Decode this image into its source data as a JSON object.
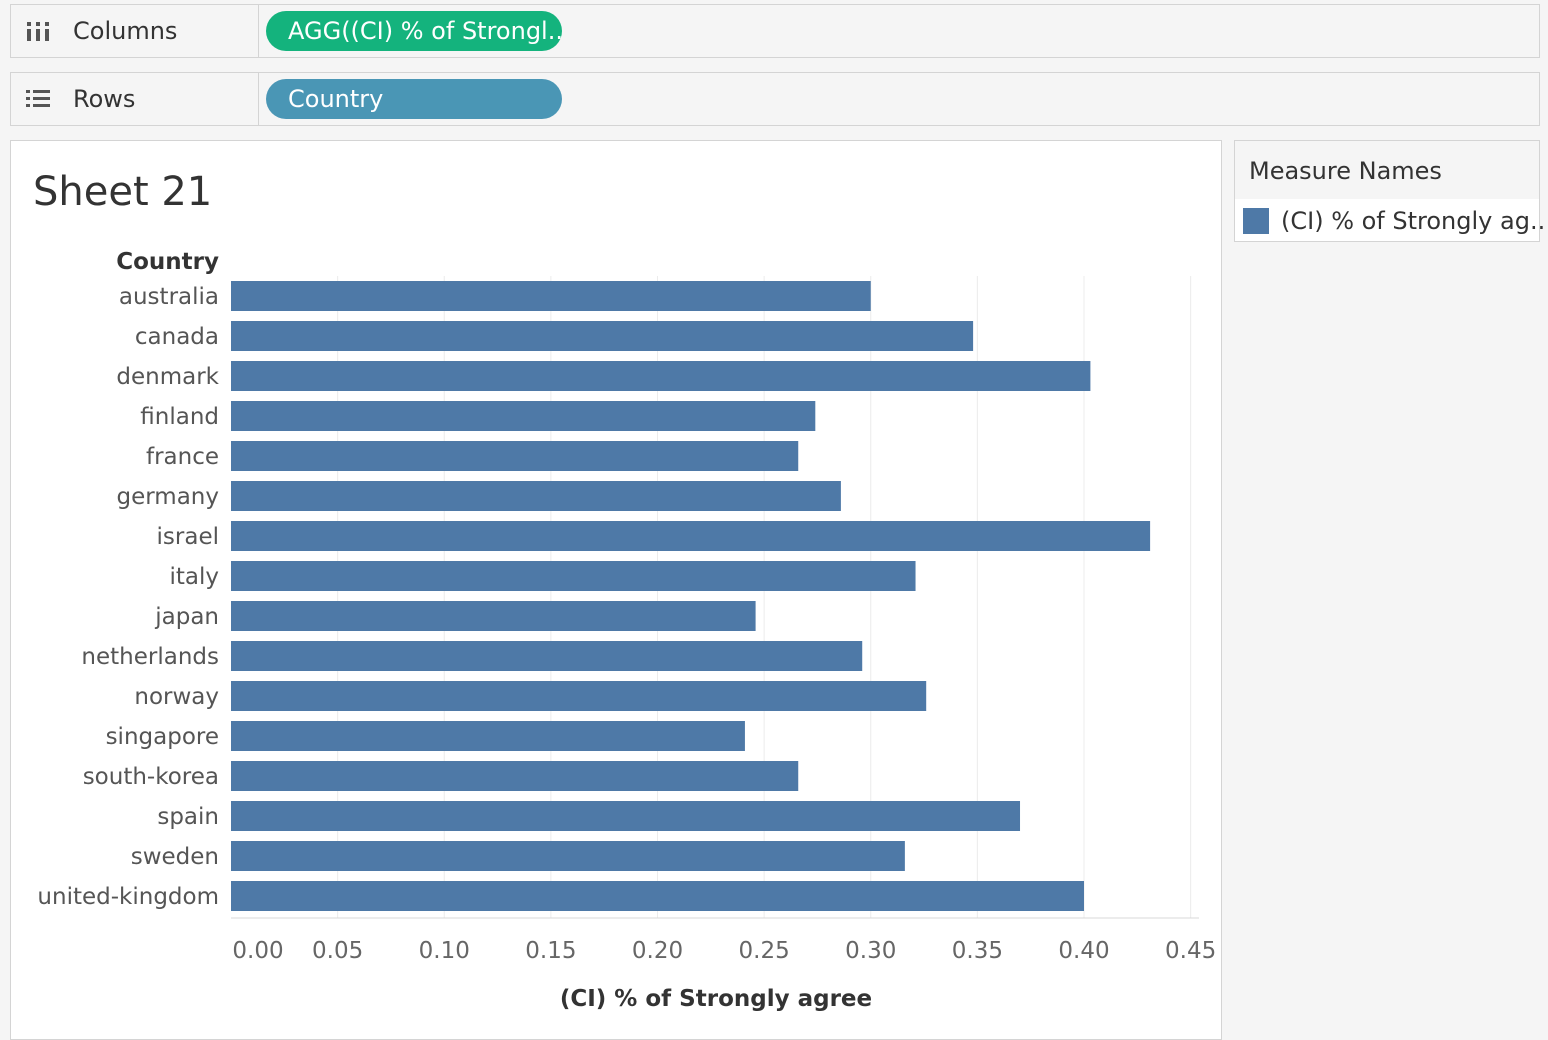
{
  "shelves": {
    "columns": {
      "label": "Columns",
      "icon": "columns-icon",
      "pill": "AGG((CI) % of Strongl.."
    },
    "rows": {
      "label": "Rows",
      "icon": "rows-icon",
      "pill": "Country"
    }
  },
  "sheet": {
    "title": "Sheet 21"
  },
  "legend": {
    "title": "Measure Names",
    "items": [
      {
        "label": "(CI) % of Strongly ag..",
        "color": "#4e79a7"
      }
    ]
  },
  "colors": {
    "bar": "#4e79a7",
    "pill_columns": "#14b37d",
    "pill_rows": "#4a96b5"
  },
  "chart_data": {
    "type": "bar",
    "orientation": "horizontal",
    "ylabel": "Country",
    "xlabel": "(CI) % of Strongly agree",
    "xlim": [
      0,
      0.45
    ],
    "xticks": [
      "0.00",
      "0.05",
      "0.10",
      "0.15",
      "0.20",
      "0.25",
      "0.30",
      "0.35",
      "0.40",
      "0.45"
    ],
    "grid": true,
    "categories": [
      "australia",
      "canada",
      "denmark",
      "finland",
      "france",
      "germany",
      "israel",
      "italy",
      "japan",
      "netherlands",
      "norway",
      "singapore",
      "south-korea",
      "spain",
      "sweden",
      "united-kingdom"
    ],
    "values": [
      0.3,
      0.348,
      0.403,
      0.274,
      0.266,
      0.286,
      0.431,
      0.321,
      0.246,
      0.296,
      0.326,
      0.241,
      0.266,
      0.37,
      0.316,
      0.4
    ]
  }
}
